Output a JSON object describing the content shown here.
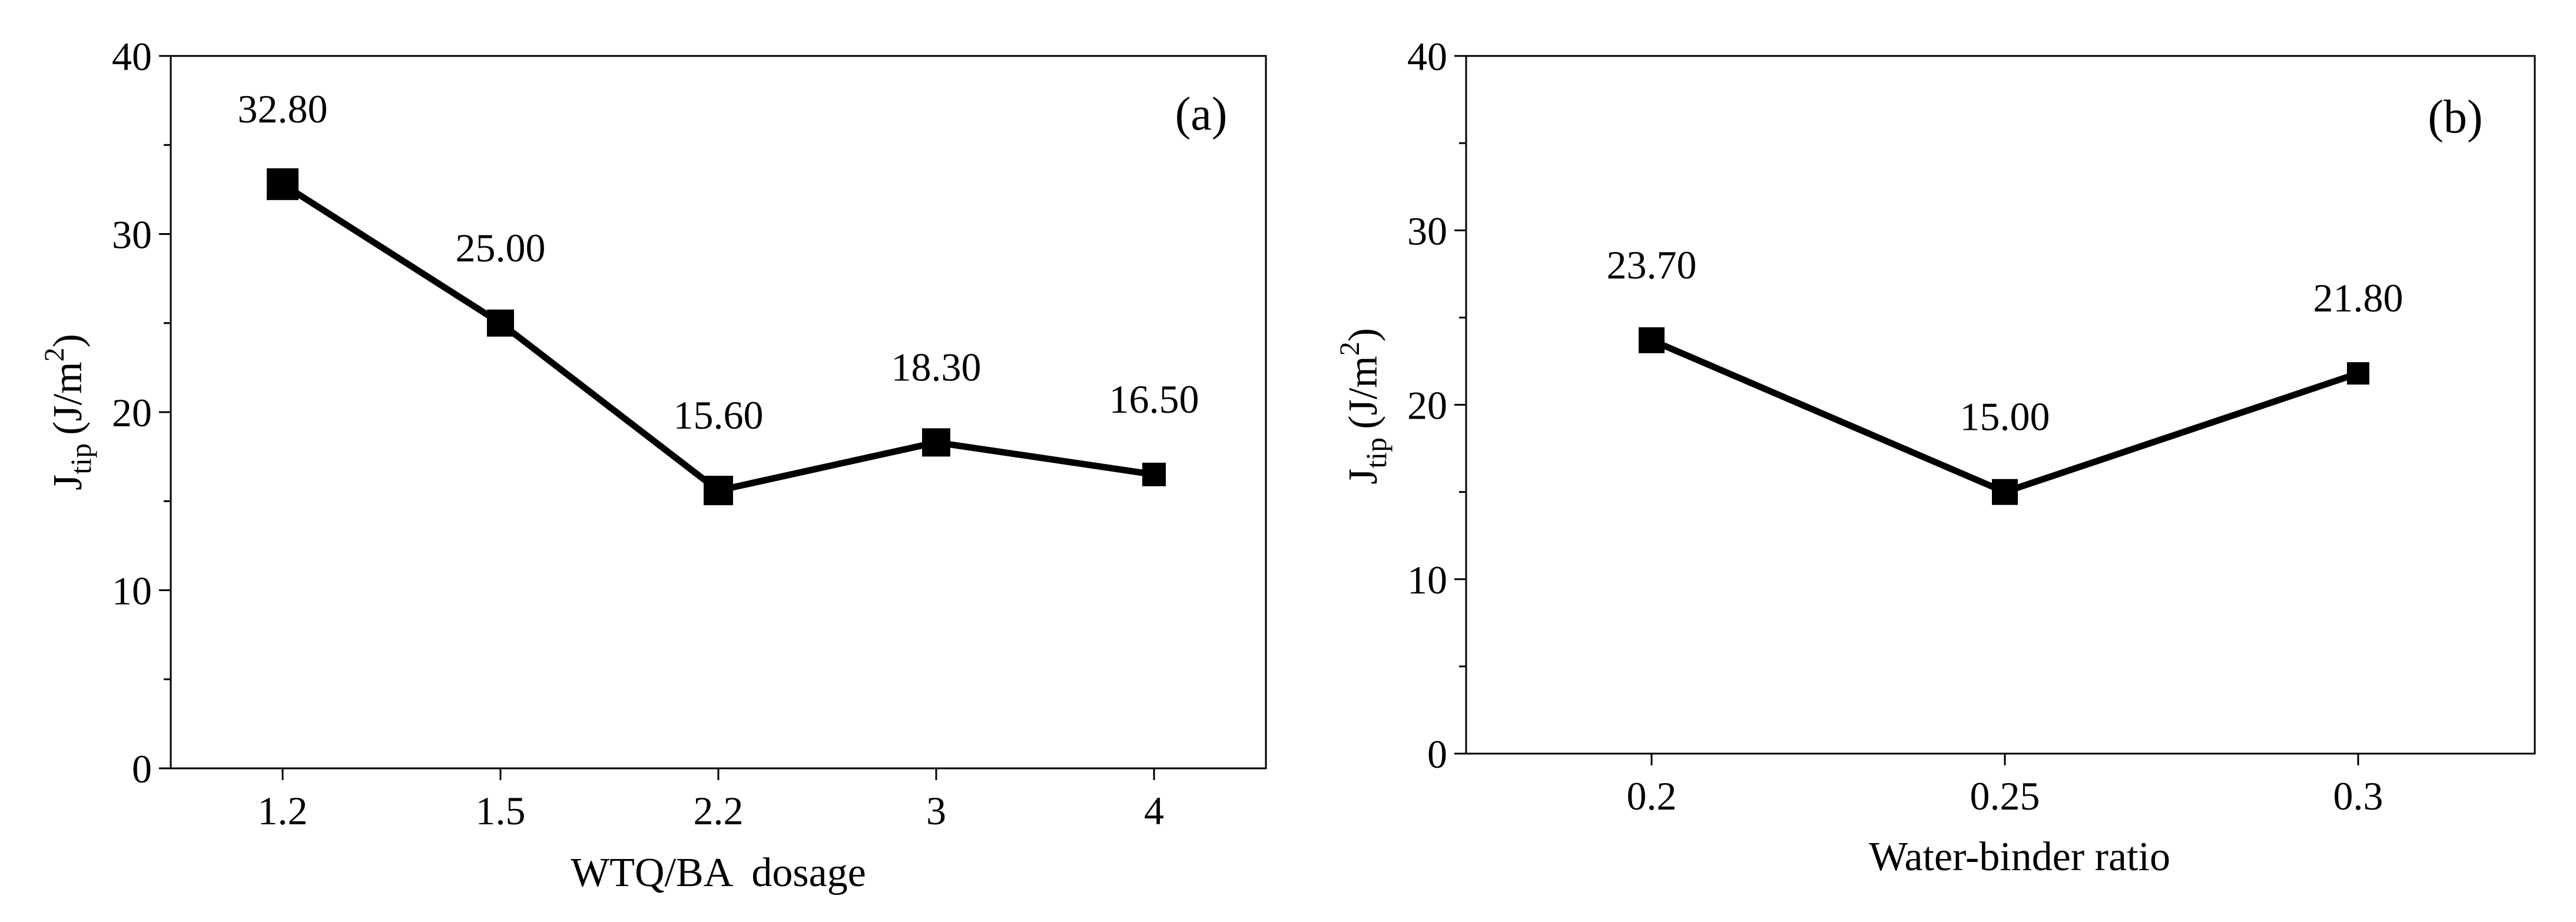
{
  "chart_data": [
    {
      "type": "line",
      "panel_label": "(a)",
      "title": "",
      "xlabel": "WTQ/BA  dosage",
      "ylabel_main": "J",
      "ylabel_sub": "tip",
      "ylabel_unit_pre": "(J/m",
      "ylabel_unit_sup": "2",
      "ylabel_unit_post": ")",
      "categories": [
        "1.2",
        "1.5",
        "2.2",
        "3",
        "4"
      ],
      "values": [
        32.8,
        25.0,
        15.6,
        18.3,
        16.5
      ],
      "data_labels": [
        "32.80",
        "25.00",
        "15.60",
        "18.30",
        "16.50"
      ],
      "ylim": [
        0,
        40
      ],
      "yticks": [
        0,
        10,
        20,
        30,
        40
      ],
      "color": "#000000",
      "marker": "square",
      "grid": false
    },
    {
      "type": "line",
      "panel_label": "(b)",
      "title": "",
      "xlabel": "Water-binder ratio",
      "ylabel_main": "J",
      "ylabel_sub": "tip",
      "ylabel_unit_pre": "(J/m",
      "ylabel_unit_sup": "2",
      "ylabel_unit_post": ")",
      "categories": [
        "0.2",
        "0.25",
        "0.3"
      ],
      "values": [
        23.7,
        15.0,
        21.8
      ],
      "data_labels": [
        "23.70",
        "15.00",
        "21.80"
      ],
      "ylim": [
        0,
        40
      ],
      "yticks": [
        0,
        10,
        20,
        30,
        40
      ],
      "color": "#000000",
      "marker": "square",
      "grid": false
    }
  ]
}
